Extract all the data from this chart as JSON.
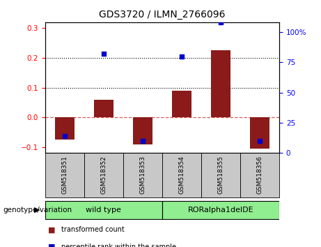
{
  "title": "GDS3720 / ILMN_2766096",
  "categories": [
    "GSM518351",
    "GSM518352",
    "GSM518353",
    "GSM518354",
    "GSM518355",
    "GSM518356"
  ],
  "red_values": [
    -0.075,
    0.06,
    -0.09,
    0.09,
    0.225,
    -0.105
  ],
  "blue_percentile": [
    14,
    82,
    10,
    80,
    108,
    10
  ],
  "ylim_left": [
    -0.12,
    0.32
  ],
  "ylim_right": [
    0,
    108
  ],
  "yticks_left": [
    -0.1,
    0.0,
    0.1,
    0.2,
    0.3
  ],
  "yticks_right": [
    0,
    25,
    50,
    75,
    100
  ],
  "ytick_labels_right": [
    "0",
    "25",
    "50",
    "75",
    "100%"
  ],
  "hlines": [
    0.1,
    0.2
  ],
  "group1_label": "wild type",
  "group2_label": "RORalpha1delDE",
  "group1_indices": [
    0,
    1,
    2
  ],
  "group2_indices": [
    3,
    4,
    5
  ],
  "group1_color": "#90EE90",
  "group2_color": "#90EE90",
  "bar_color": "#8B1A1A",
  "dot_color": "#0000CD",
  "bar_width": 0.5,
  "legend_red": "transformed count",
  "legend_blue": "percentile rank within the sample",
  "genotype_label": "genotype/variation",
  "bg_color": "#C8C8C8",
  "plot_bg": "#FFFFFF"
}
